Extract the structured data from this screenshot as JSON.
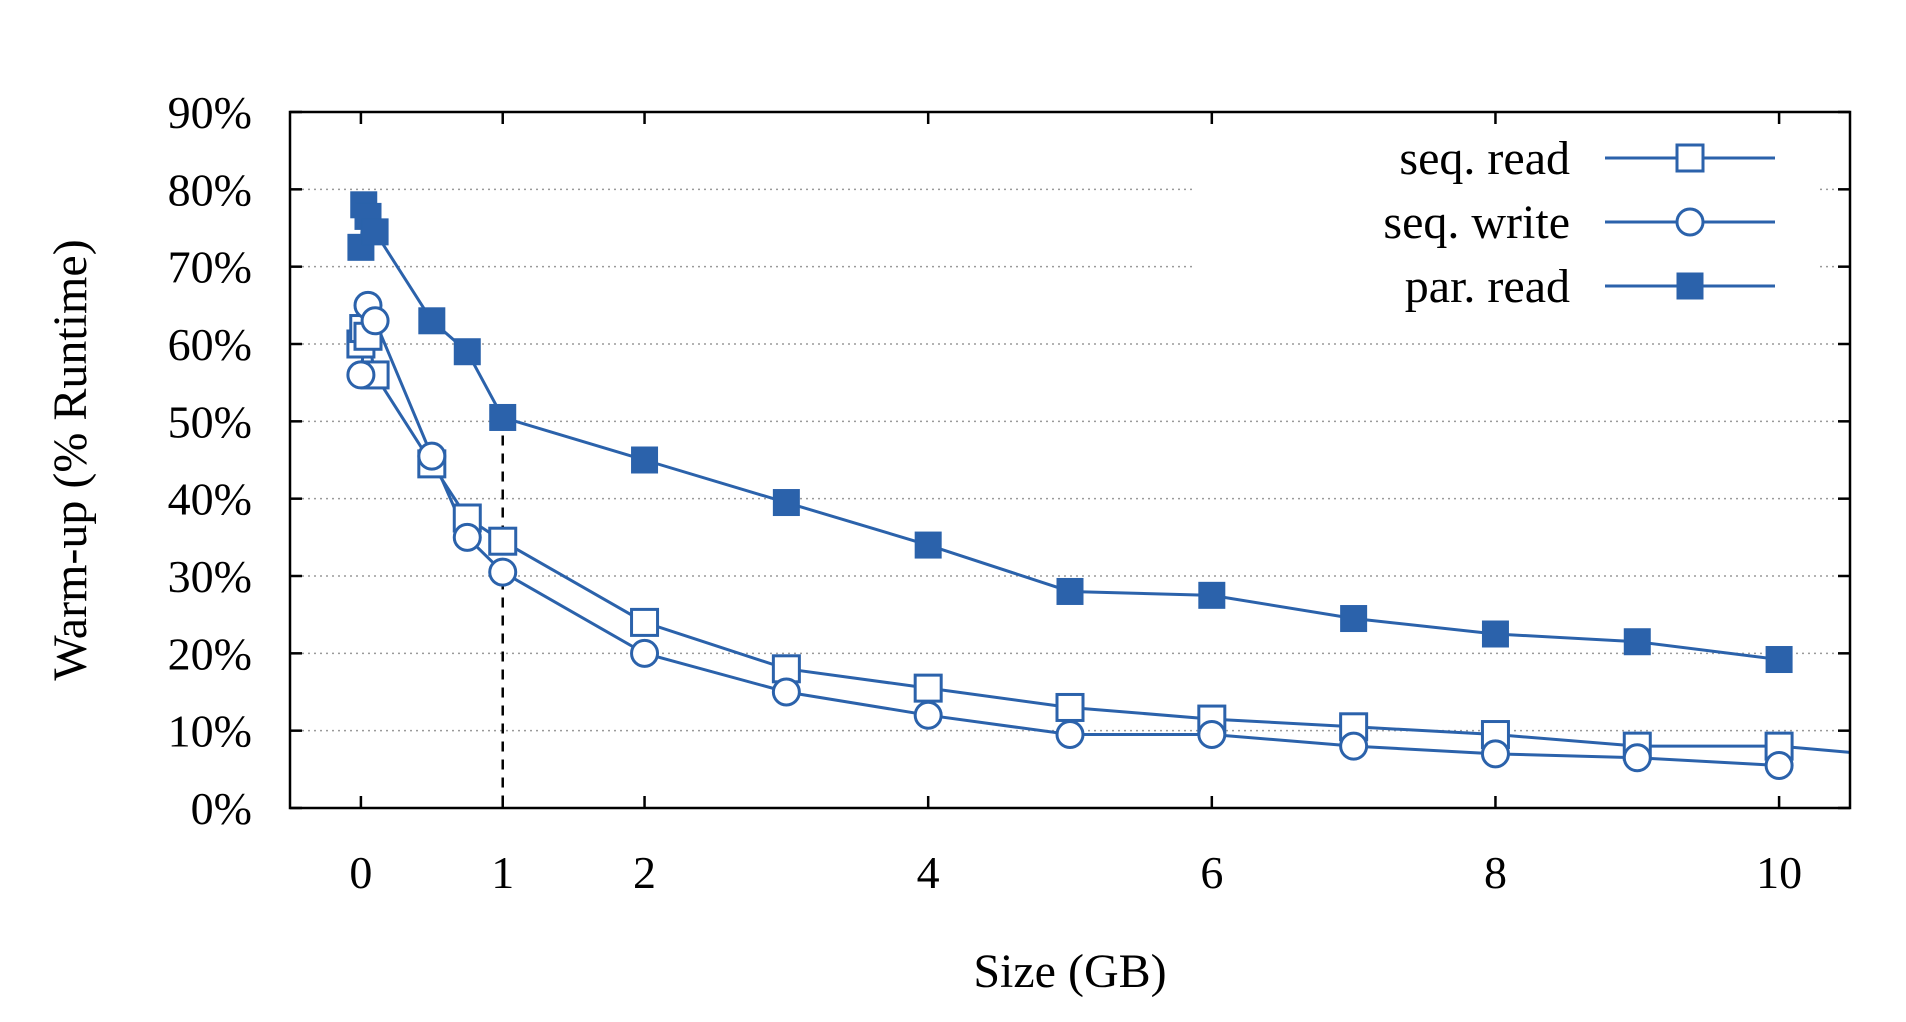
{
  "chart_data": {
    "type": "line",
    "xlabel": "Size (GB)",
    "ylabel": "Warm-up (% Runtime)",
    "xlim": [
      -0.5,
      10.5
    ],
    "ylim": [
      0,
      90
    ],
    "x_ticks": [
      0,
      1,
      2,
      4,
      6,
      8,
      10
    ],
    "x_tick_labels": [
      "0",
      "1",
      "2",
      "4",
      "6",
      "8",
      "10"
    ],
    "y_ticks": [
      0,
      10,
      20,
      30,
      40,
      50,
      60,
      70,
      80,
      90
    ],
    "y_tick_labels": [
      "0%",
      "10%",
      "20%",
      "30%",
      "40%",
      "50%",
      "60%",
      "70%",
      "80%",
      "90%"
    ],
    "grid": "horizontal dotted",
    "legend_position": "top-right",
    "reference_line_x": 1,
    "color": "#2b62ab",
    "series": [
      {
        "name": "seq. read",
        "marker": "open-square",
        "x": [
          0,
          0.02,
          0.05,
          0.1,
          0.5,
          0.75,
          1,
          2,
          3,
          4,
          5,
          6,
          7,
          8,
          9,
          10
        ],
        "y": [
          60,
          62,
          61,
          56,
          44.5,
          37.5,
          34.5,
          24,
          18,
          15.5,
          13,
          11.5,
          10.5,
          9.5,
          8,
          8
        ],
        "trailing_line_end": [
          10.5,
          7.2
        ]
      },
      {
        "name": "seq. write",
        "marker": "open-circle",
        "x": [
          0,
          0.05,
          0.1,
          0.5,
          0.75,
          1,
          2,
          3,
          4,
          5,
          6,
          7,
          8,
          9,
          10
        ],
        "y": [
          56,
          65,
          63,
          45.5,
          35,
          30.5,
          20,
          15,
          12,
          9.5,
          9.5,
          8,
          7,
          6.5,
          5.5
        ]
      },
      {
        "name": "par. read",
        "marker": "filled-square",
        "x": [
          0,
          0.02,
          0.05,
          0.1,
          0.5,
          0.75,
          1,
          2,
          3,
          4,
          5,
          6,
          7,
          8,
          9,
          10
        ],
        "y": [
          72.5,
          78,
          76.5,
          74.5,
          63,
          59,
          50.5,
          45,
          39.5,
          34,
          28,
          27.5,
          24.5,
          22.5,
          21.5,
          19.2
        ]
      }
    ]
  }
}
